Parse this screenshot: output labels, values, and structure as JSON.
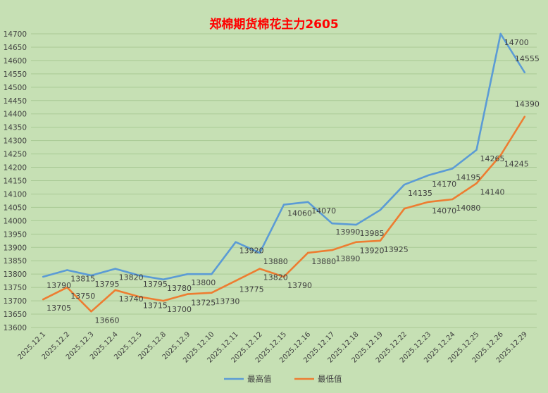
{
  "chart_data": {
    "type": "line",
    "title": "郑棉期货棉花主力2605",
    "xlabel": "",
    "ylabel": "",
    "ylim": [
      13600,
      14700
    ],
    "ytick_step": 50,
    "grid": true,
    "legend_position": "bottom",
    "categories": [
      "2025.12.1",
      "2025.12.2",
      "2025.12.3",
      "2025.12.4",
      "2025.12.5",
      "2025.12.8",
      "2025.12.9",
      "2025.12.10",
      "2025.12.11",
      "2025.12.12",
      "2025.12.15",
      "2025.12.16",
      "2025.12.17",
      "2025.12.18",
      "2025.12.19",
      "2025.12.22",
      "2025.12.23",
      "2025.12.24",
      "2025.12.25",
      "2025.12.26",
      "2025.12.29"
    ],
    "series": [
      {
        "name": "最高值",
        "color": "#5b9bd5",
        "values": [
          13790,
          13815,
          13795,
          13820,
          13795,
          13780,
          13800,
          13800,
          13920,
          13880,
          14060,
          14070,
          13990,
          13985,
          14040,
          14135,
          14170,
          14195,
          14265,
          14700,
          14555
        ],
        "labeled": [
          true,
          true,
          true,
          true,
          true,
          true,
          true,
          false,
          true,
          true,
          true,
          true,
          true,
          true,
          false,
          true,
          true,
          true,
          true,
          true,
          true
        ]
      },
      {
        "name": "最低值",
        "color": "#ed7d31",
        "values": [
          13705,
          13750,
          13660,
          13740,
          13715,
          13700,
          13725,
          13730,
          13775,
          13820,
          13790,
          13880,
          13890,
          13920,
          13925,
          14045,
          14070,
          14080,
          14140,
          14245,
          14390
        ],
        "labeled": [
          true,
          true,
          true,
          true,
          true,
          true,
          true,
          true,
          true,
          true,
          true,
          true,
          true,
          true,
          true,
          false,
          true,
          true,
          true,
          true,
          true
        ]
      }
    ],
    "colors": {
      "background": "#c6e0b4",
      "title": "#ff0000",
      "grid": "#a9c995",
      "text": "#404040"
    }
  }
}
